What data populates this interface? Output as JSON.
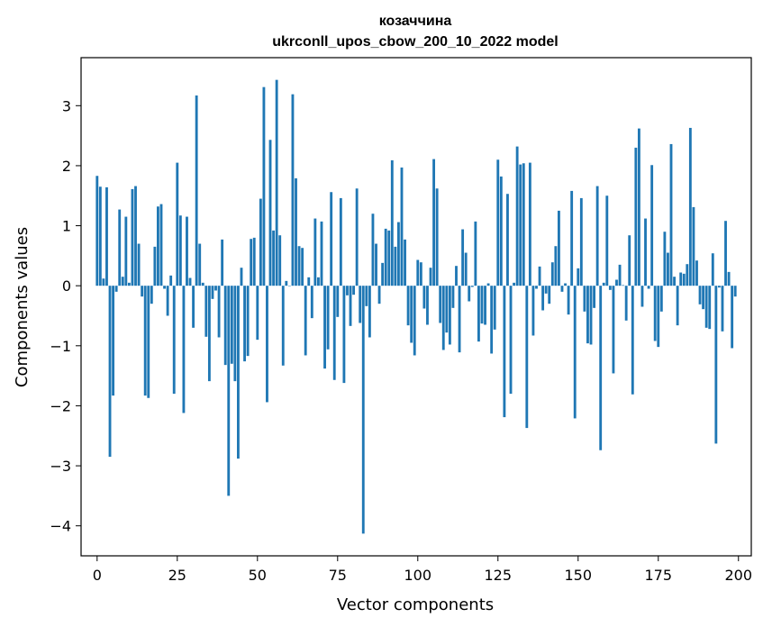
{
  "chart_data": {
    "type": "bar",
    "title": "козаччина",
    "subtitle": "ukrconll_upos_cbow_200_10_2022 model",
    "xlabel": "Vector components",
    "ylabel": "Components values",
    "xlim": [
      -5,
      204
    ],
    "ylim": [
      -4.5,
      3.8
    ],
    "xticks": [
      0,
      25,
      50,
      75,
      100,
      125,
      150,
      175,
      200
    ],
    "yticks": [
      -4,
      -3,
      -2,
      -1,
      0,
      1,
      2,
      3
    ],
    "ytick_labels": [
      "−4",
      "−3",
      "−2",
      "−1",
      "0",
      "1",
      "2",
      "3"
    ],
    "grid": false,
    "bar_color": "#1f77b4",
    "x": [
      0,
      1,
      2,
      3,
      4,
      5,
      6,
      7,
      8,
      9,
      10,
      11,
      12,
      13,
      14,
      15,
      16,
      17,
      18,
      19,
      20,
      21,
      22,
      23,
      24,
      25,
      26,
      27,
      28,
      29,
      30,
      31,
      32,
      33,
      34,
      35,
      36,
      37,
      38,
      39,
      40,
      41,
      42,
      43,
      44,
      45,
      46,
      47,
      48,
      49,
      50,
      51,
      52,
      53,
      54,
      55,
      56,
      57,
      58,
      59,
      60,
      61,
      62,
      63,
      64,
      65,
      66,
      67,
      68,
      69,
      70,
      71,
      72,
      73,
      74,
      75,
      76,
      77,
      78,
      79,
      80,
      81,
      82,
      83,
      84,
      85,
      86,
      87,
      88,
      89,
      90,
      91,
      92,
      93,
      94,
      95,
      96,
      97,
      98,
      99,
      100,
      101,
      102,
      103,
      104,
      105,
      106,
      107,
      108,
      109,
      110,
      111,
      112,
      113,
      114,
      115,
      116,
      117,
      118,
      119,
      120,
      121,
      122,
      123,
      124,
      125,
      126,
      127,
      128,
      129,
      130,
      131,
      132,
      133,
      134,
      135,
      136,
      137,
      138,
      139,
      140,
      141,
      142,
      143,
      144,
      145,
      146,
      147,
      148,
      149,
      150,
      151,
      152,
      153,
      154,
      155,
      156,
      157,
      158,
      159,
      160,
      161,
      162,
      163,
      164,
      165,
      166,
      167,
      168,
      169,
      170,
      171,
      172,
      173,
      174,
      175,
      176,
      177,
      178,
      179,
      180,
      181,
      182,
      183,
      184,
      185,
      186,
      187,
      188,
      189,
      190,
      191,
      192,
      193,
      194,
      195,
      196,
      197,
      198,
      199
    ],
    "values": [
      1.83,
      1.65,
      0.12,
      1.64,
      -2.85,
      -1.83,
      -0.1,
      1.27,
      0.15,
      1.15,
      0.05,
      1.61,
      1.66,
      0.7,
      -0.18,
      -1.83,
      -1.87,
      -0.3,
      0.65,
      1.32,
      1.36,
      -0.05,
      -0.5,
      0.17,
      -1.8,
      2.05,
      1.17,
      -2.12,
      1.15,
      0.13,
      -0.7,
      3.17,
      0.7,
      0.05,
      -0.85,
      -1.59,
      -0.22,
      -0.08,
      -0.86,
      0.77,
      -1.32,
      -3.5,
      -1.3,
      -1.59,
      -2.88,
      0.3,
      -1.26,
      -1.17,
      0.78,
      0.8,
      -0.9,
      1.45,
      3.31,
      -1.94,
      2.43,
      0.92,
      3.43,
      0.84,
      -1.33,
      0.08,
      0.0,
      3.19,
      1.79,
      0.66,
      0.63,
      -1.16,
      0.14,
      -0.54,
      1.12,
      0.14,
      1.07,
      -1.38,
      -1.06,
      1.56,
      -1.57,
      -0.52,
      1.46,
      -1.62,
      -0.16,
      -0.67,
      -0.15,
      1.62,
      -0.62,
      -4.13,
      -0.34,
      -0.86,
      1.2,
      0.7,
      -0.3,
      0.38,
      0.95,
      0.92,
      2.09,
      0.65,
      1.06,
      1.97,
      0.77,
      -0.66,
      -0.95,
      -1.16,
      0.43,
      0.39,
      -0.38,
      -0.65,
      0.3,
      2.11,
      1.62,
      -0.62,
      -1.07,
      -0.78,
      -0.98,
      -0.37,
      0.33,
      -1.11,
      0.94,
      0.55,
      -0.26,
      -0.02,
      1.07,
      -0.93,
      -0.63,
      -0.65,
      0.04,
      -1.13,
      -0.73,
      2.1,
      1.82,
      -2.19,
      1.53,
      -1.8,
      0.05,
      2.32,
      2.02,
      2.04,
      -2.37,
      2.05,
      -0.83,
      -0.05,
      0.32,
      -0.41,
      -0.13,
      -0.3,
      0.39,
      0.66,
      1.25,
      -0.1,
      0.04,
      -0.48,
      1.58,
      -2.21,
      0.29,
      1.46,
      -0.43,
      -0.96,
      -0.98,
      -0.37,
      1.66,
      -2.74,
      0.05,
      1.5,
      -0.07,
      -1.46,
      0.1,
      0.35,
      0.01,
      -0.58,
      0.84,
      -1.81,
      2.3,
      2.62,
      -0.35,
      1.12,
      -0.05,
      2.01,
      -0.92,
      -1.02,
      -0.43,
      0.9,
      0.55,
      2.36,
      0.15,
      -0.66,
      0.22,
      0.2,
      0.36,
      2.63,
      1.31,
      0.42,
      -0.31,
      -0.39,
      -0.7,
      -0.72,
      0.54,
      -2.63,
      -0.03,
      -0.76,
      1.08,
      0.23,
      -1.04,
      -0.18
    ]
  }
}
